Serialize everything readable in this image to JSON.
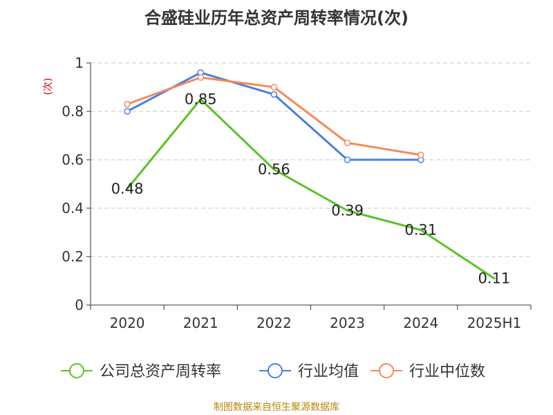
{
  "chart_data": {
    "type": "line",
    "title": "合盛硅业历年总资产周转率情况(次)",
    "ylabel": "(次)",
    "xlabel": "",
    "categories": [
      "2020",
      "2021",
      "2022",
      "2023",
      "2024",
      "2025H1"
    ],
    "ylim": [
      0,
      1
    ],
    "yticks": [
      0,
      0.2,
      0.4,
      0.6,
      0.8,
      1
    ],
    "ytick_labels": [
      "0",
      "0.2",
      "0.4",
      "0.6",
      "0.8",
      "1"
    ],
    "grid": true,
    "legend_position": "bottom",
    "series": [
      {
        "name": "公司总资产周转率",
        "color": "#5ac229",
        "values": [
          0.48,
          0.85,
          0.56,
          0.39,
          0.31,
          0.11
        ],
        "labels": [
          "0.48",
          "0.85",
          "0.56",
          "0.39",
          "0.31",
          "0.11"
        ]
      },
      {
        "name": "行业均值",
        "color": "#4a7fe0",
        "values": [
          0.8,
          0.96,
          0.87,
          0.6,
          0.6,
          null
        ]
      },
      {
        "name": "行业中位数",
        "color": "#f5895a",
        "values": [
          0.83,
          0.94,
          0.9,
          0.67,
          0.62,
          null
        ]
      }
    ]
  },
  "source_note": "制图数据来自恒生聚源数据库"
}
